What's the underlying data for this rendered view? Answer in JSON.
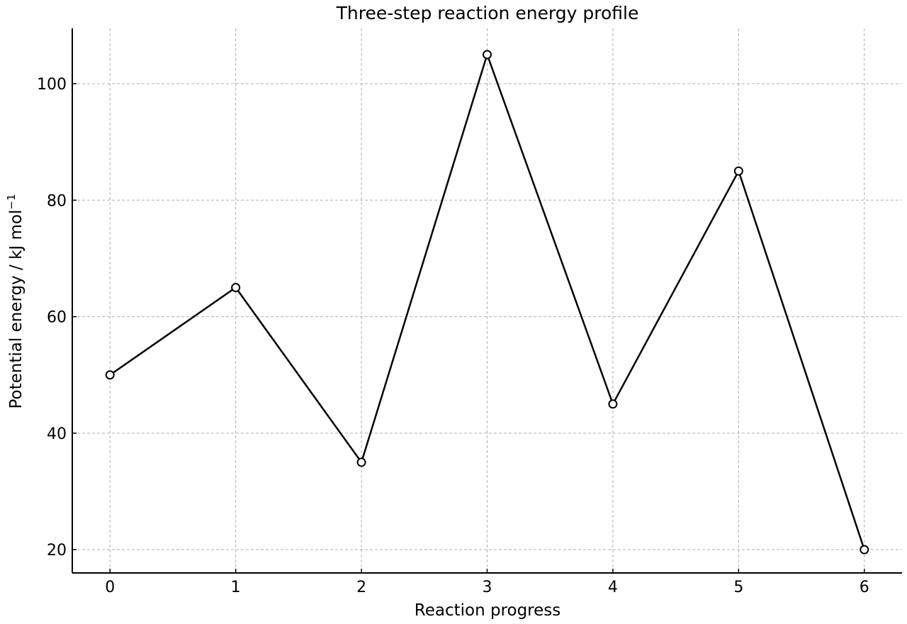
{
  "chart_data": {
    "type": "line",
    "title": "Three-step reaction energy profile",
    "xlabel": "Reaction progress",
    "ylabel_main": "Potential energy / kJ mol",
    "ylabel_sup": "−1",
    "x": [
      0,
      1,
      2,
      3,
      4,
      5,
      6
    ],
    "series": [
      {
        "values": [
          50,
          65,
          35,
          105,
          45,
          85,
          20
        ]
      }
    ],
    "xlim": [
      -0.3,
      6.3
    ],
    "ylim": [
      16,
      109.5
    ],
    "xticks": [
      0,
      1,
      2,
      3,
      4,
      5,
      6
    ],
    "yticks": [
      20,
      40,
      60,
      80,
      100
    ],
    "grid": true,
    "line_color": "#000000",
    "marker": "open-circle"
  }
}
